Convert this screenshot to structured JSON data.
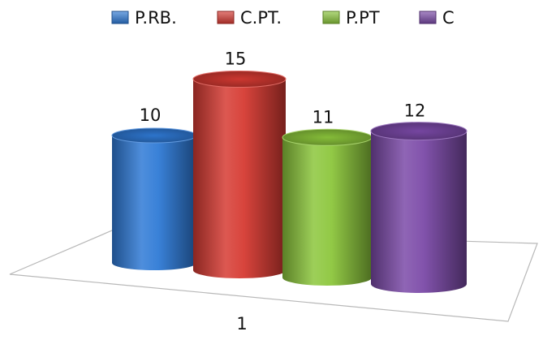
{
  "chart_data": {
    "type": "bar",
    "style": "3d-cylinder",
    "categories": [
      "1"
    ],
    "series": [
      {
        "name": "P.RB.",
        "values": [
          10
        ],
        "color": "#2f7ad6"
      },
      {
        "name": "C.PT.",
        "values": [
          15
        ],
        "color": "#d63a32"
      },
      {
        "name": "P.PT",
        "values": [
          11
        ],
        "color": "#8cc63c"
      },
      {
        "name": "C",
        "values": [
          12
        ],
        "color": "#7b4aa8"
      }
    ],
    "data_labels": true,
    "legend_position": "top",
    "grid": false,
    "ylim": [
      0,
      15
    ]
  }
}
